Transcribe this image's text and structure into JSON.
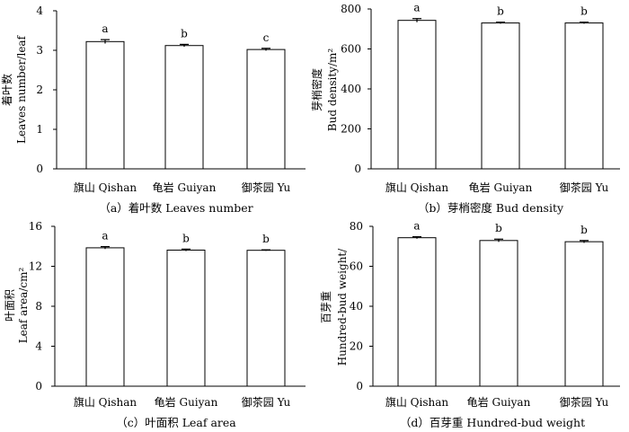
{
  "categories": [
    "旗山 Qishan",
    "龟岩 Guiyan",
    "御茶园 Yu"
  ],
  "chart_data": [
    {
      "type": "bar",
      "caption": "（a）着叶数  Leaves number",
      "ylabel_cn": "着叶数",
      "ylabel_en": "Leaves number/leaf",
      "ylim": [
        0,
        4
      ],
      "yticks": [
        "0",
        "1",
        "2",
        "3",
        "4"
      ],
      "categories": [
        "旗山 Qishan",
        "龟岩 Guiyan",
        "御茶园 Yu"
      ],
      "values": [
        3.22,
        3.12,
        3.02
      ],
      "errors": [
        0.05,
        0.03,
        0.03
      ],
      "letters": [
        "a",
        "b",
        "c"
      ]
    },
    {
      "type": "bar",
      "caption": "（b）芽梢密度  Bud density",
      "ylabel_cn": "芽梢密度",
      "ylabel_en": "Bud density/m²",
      "ylim": [
        0,
        800
      ],
      "yticks": [
        "0",
        "200",
        "400",
        "600",
        "800"
      ],
      "categories": [
        "旗山 Qishan",
        "龟岩 Guiyan",
        "御茶园 Yu"
      ],
      "values": [
        743,
        730,
        730
      ],
      "errors": [
        9,
        4,
        4
      ],
      "letters": [
        "a",
        "b",
        "b"
      ]
    },
    {
      "type": "bar",
      "caption": "（c）叶面积  Leaf area",
      "ylabel_cn": "叶面积",
      "ylabel_en": "Leaf area/cm²",
      "ylim": [
        0,
        16
      ],
      "yticks": [
        "0",
        "4",
        "8",
        "12",
        "16"
      ],
      "categories": [
        "旗山 Qishan",
        "龟岩 Guiyan",
        "御茶园 Yu"
      ],
      "values": [
        13.85,
        13.62,
        13.6
      ],
      "errors": [
        0.12,
        0.1,
        0.05
      ],
      "letters": [
        "a",
        "b",
        "b"
      ]
    },
    {
      "type": "bar",
      "caption": "（d）百芽重  Hundred-bud weight",
      "ylabel_cn": "百芽重",
      "ylabel_en": "Hundred-bud weight/",
      "ylim": [
        0,
        80
      ],
      "yticks": [
        "0",
        "20",
        "40",
        "60",
        "80"
      ],
      "categories": [
        "旗山 Qishan",
        "龟岩 Guiyan",
        "御茶园 Yu"
      ],
      "values": [
        74.3,
        72.9,
        72.3
      ],
      "errors": [
        0.5,
        0.7,
        0.6
      ],
      "letters": [
        "a",
        "b",
        "b"
      ]
    }
  ]
}
